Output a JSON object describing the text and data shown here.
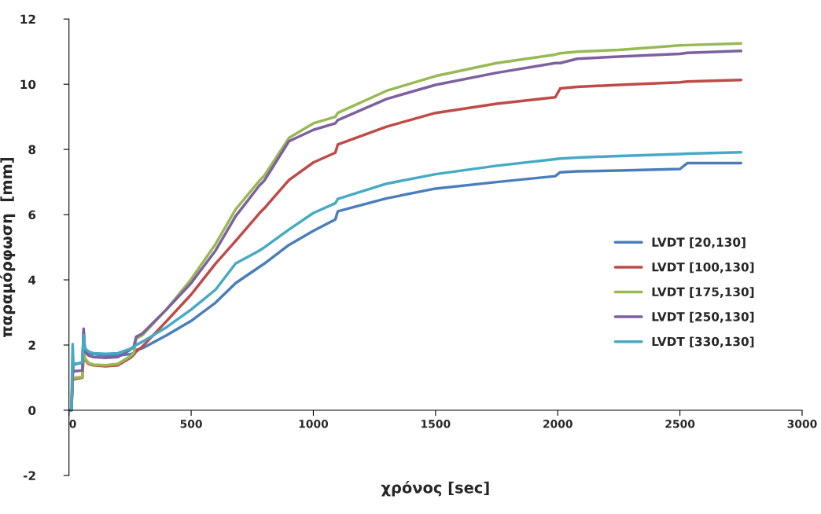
{
  "chart_data": {
    "type": "line",
    "xlabel": "χρόνος [sec]",
    "ylabel": "παραμόρφωση  [mm]",
    "x": [
      0,
      10,
      15,
      18,
      25,
      55,
      60,
      65,
      80,
      100,
      150,
      200,
      250,
      265,
      275,
      300,
      400,
      500,
      600,
      682,
      780,
      800,
      900,
      1000,
      1090,
      1100,
      1300,
      1500,
      1750,
      1990,
      2010,
      2080,
      2250,
      2500,
      2530,
      2750
    ],
    "series": [
      {
        "name": "LVDT [20,130]",
        "color": "#4a7ebb",
        "values": [
          0,
          0,
          1.0,
          1.4,
          1.42,
          1.45,
          2.4,
          1.85,
          1.75,
          1.72,
          1.68,
          1.68,
          1.72,
          1.75,
          1.85,
          1.9,
          2.3,
          2.74,
          3.3,
          3.9,
          4.4,
          4.5,
          5.07,
          5.5,
          5.85,
          6.1,
          6.5,
          6.8,
          7.0,
          7.18,
          7.3,
          7.33,
          7.35,
          7.4,
          7.58,
          7.58
        ]
      },
      {
        "name": "LVDT [100,130]",
        "color": "#be4b48",
        "values": [
          0,
          0,
          0.9,
          0.94,
          0.96,
          1.0,
          1.8,
          1.55,
          1.42,
          1.38,
          1.35,
          1.38,
          1.6,
          1.7,
          1.8,
          1.95,
          2.74,
          3.55,
          4.5,
          5.19,
          6.05,
          6.2,
          7.06,
          7.6,
          7.9,
          8.15,
          8.7,
          9.12,
          9.4,
          9.6,
          9.87,
          9.92,
          9.98,
          10.06,
          10.08,
          10.13
        ]
      },
      {
        "name": "LVDT [175,130]",
        "color": "#98b954",
        "values": [
          0,
          0,
          0.95,
          0.98,
          1.0,
          1.02,
          1.9,
          1.6,
          1.45,
          1.4,
          1.38,
          1.42,
          1.65,
          1.75,
          2.2,
          2.3,
          3.1,
          4.02,
          5.1,
          6.16,
          7.05,
          7.2,
          8.35,
          8.8,
          9.0,
          9.12,
          9.8,
          10.25,
          10.65,
          10.91,
          10.95,
          11.0,
          11.05,
          11.19,
          11.2,
          11.25
        ]
      },
      {
        "name": "LVDT [250,130]",
        "color": "#7d60a0",
        "values": [
          0,
          0,
          1.15,
          1.19,
          1.2,
          1.22,
          2.5,
          1.8,
          1.68,
          1.63,
          1.61,
          1.63,
          1.85,
          1.95,
          2.25,
          2.35,
          3.1,
          3.9,
          4.9,
          5.95,
          6.9,
          7.05,
          8.25,
          8.6,
          8.8,
          8.9,
          9.55,
          9.98,
          10.35,
          10.65,
          10.65,
          10.78,
          10.85,
          10.93,
          10.96,
          11.02
        ]
      },
      {
        "name": "LVDT [330,130]",
        "color": "#46aac5",
        "values": [
          0,
          0,
          2.03,
          1.38,
          1.4,
          1.48,
          2.3,
          1.9,
          1.8,
          1.75,
          1.73,
          1.75,
          1.88,
          1.95,
          2.0,
          2.1,
          2.55,
          3.09,
          3.7,
          4.5,
          4.9,
          5.0,
          5.54,
          6.05,
          6.35,
          6.48,
          6.95,
          7.24,
          7.5,
          7.7,
          7.72,
          7.75,
          7.8,
          7.86,
          7.87,
          7.91
        ]
      }
    ],
    "xlim": [
      0,
      3000
    ],
    "xticks": [
      0,
      500,
      1000,
      1500,
      2000,
      2500,
      3000
    ],
    "ylim": [
      -2,
      12
    ],
    "yticks": [
      -2,
      0,
      2,
      4,
      6,
      8,
      10,
      12
    ],
    "grid": false,
    "legend": "right"
  }
}
